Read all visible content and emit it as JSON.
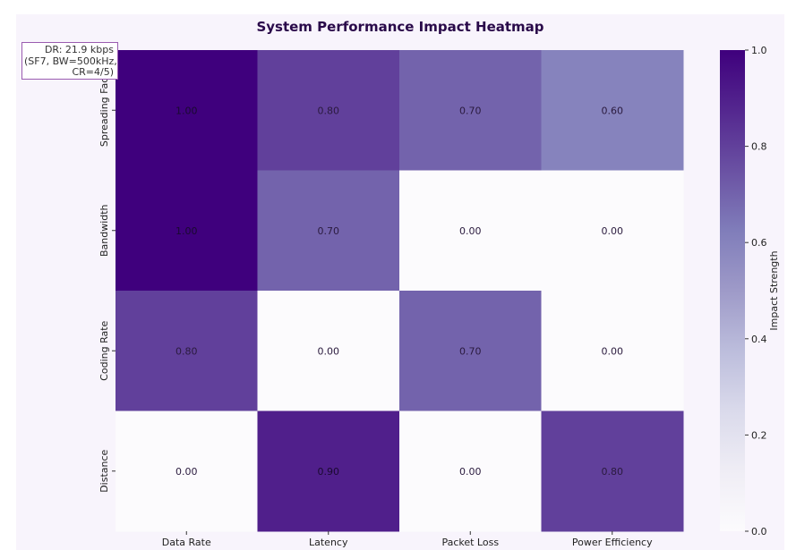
{
  "chart_data": {
    "type": "heatmap",
    "title": "System Performance Impact Heatmap",
    "columns": [
      "Data Rate",
      "Latency",
      "Packet Loss",
      "Power Efficiency"
    ],
    "rows": [
      "Spreading Fact",
      "Bandwidth",
      "Coding Rate",
      "Distance"
    ],
    "values": [
      [
        1.0,
        0.8,
        0.7,
        0.6
      ],
      [
        1.0,
        0.7,
        0.0,
        0.0
      ],
      [
        0.8,
        0.0,
        0.7,
        0.0
      ],
      [
        0.0,
        0.9,
        0.0,
        0.8
      ]
    ],
    "value_labels": [
      [
        "1.00",
        "0.80",
        "0.70",
        "0.60"
      ],
      [
        "1.00",
        "0.70",
        "0.00",
        "0.00"
      ],
      [
        "0.80",
        "0.00",
        "0.70",
        "0.00"
      ],
      [
        "0.00",
        "0.90",
        "0.00",
        "0.80"
      ]
    ],
    "colorbar": {
      "label": "Impact Strength",
      "range": [
        0.0,
        1.0
      ],
      "ticks": [
        0.0,
        0.2,
        0.4,
        0.6,
        0.8,
        1.0
      ],
      "tick_labels": [
        "0.0",
        "0.2",
        "0.4",
        "0.6",
        "0.8",
        "1.0"
      ],
      "colormap": "Purples",
      "color_low": "#fcfbfd",
      "color_high": "#3f007d"
    },
    "annotation": {
      "lines": [
        "DR: 21.9 kbps",
        "(SF7, BW=500kHz,",
        "CR=4/5)"
      ],
      "border_color": "#9a5cb0"
    }
  }
}
